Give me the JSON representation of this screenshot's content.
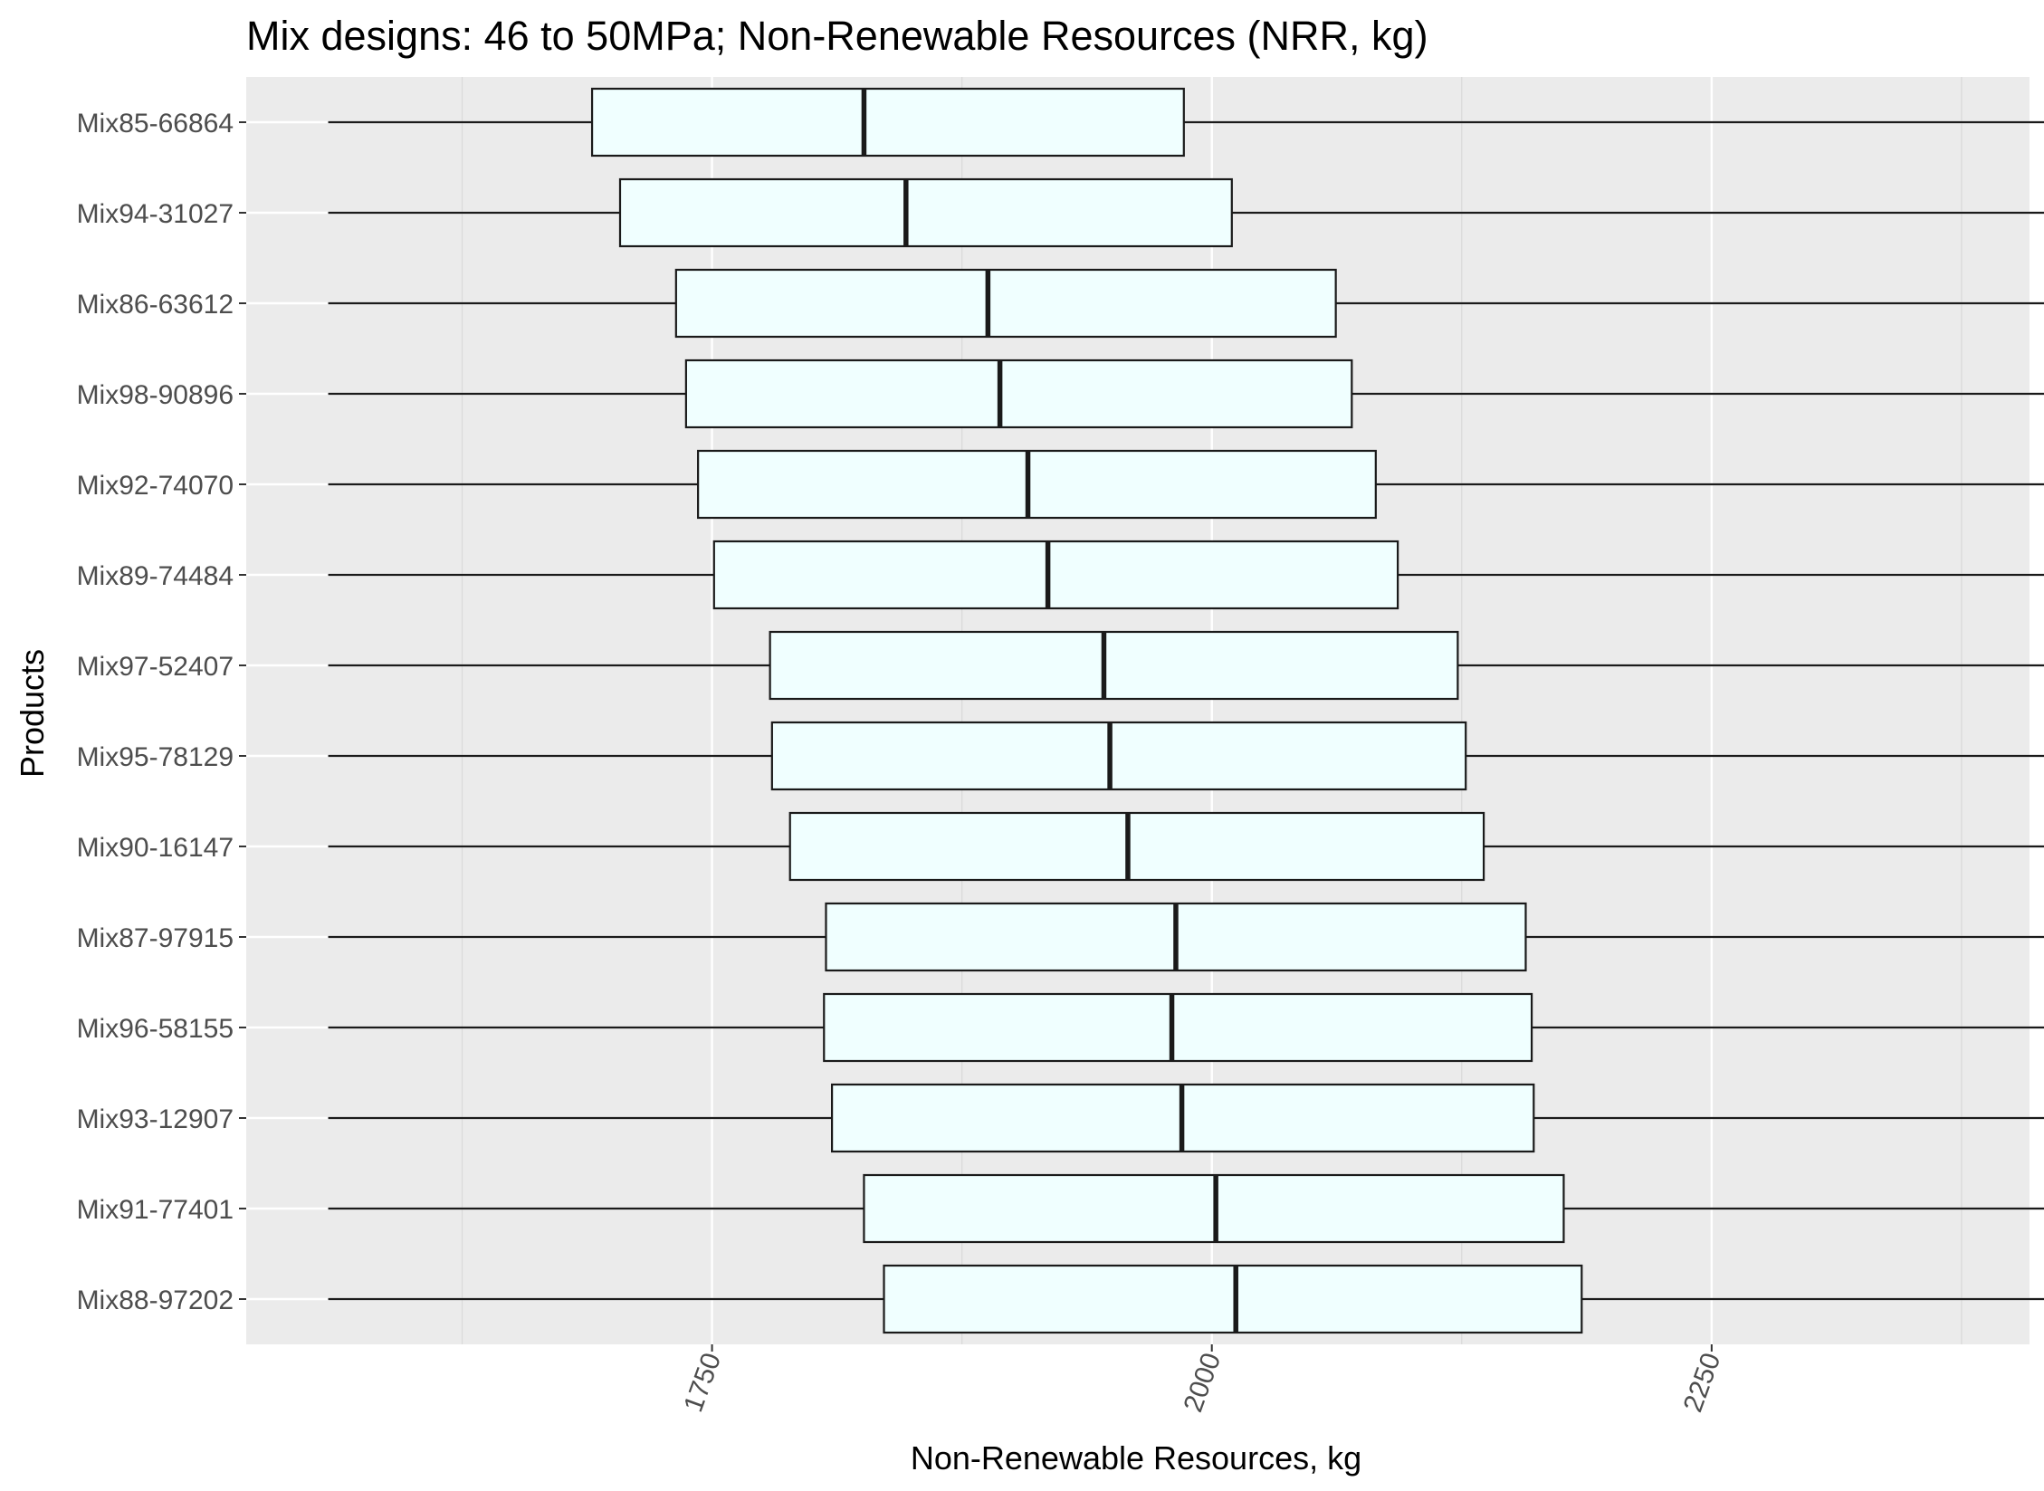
{
  "chart_data": {
    "type": "boxplot",
    "orientation": "horizontal",
    "title": "Mix designs: 46 to 50MPa; Non-Renewable Resources (NRR, kg)",
    "xlabel": "Non-Renewable Resources, kg",
    "ylabel": "Products",
    "xlim": [
      1517,
      2409
    ],
    "xticks": [
      1750,
      2000,
      2250
    ],
    "x_tick_labels": [
      "1750",
      "2000",
      "2250"
    ],
    "x_tick_label_rotation": -70,
    "grid": true,
    "legend": "none",
    "colors": {
      "panel_background": "#ebebeb",
      "grid_major": "#ffffff",
      "grid_minor": "#d9d9d9",
      "box_fill": "#f0ffff",
      "box_stroke": "#1a1a1a",
      "whisker": "#1a1a1a"
    },
    "categories": [
      "Mix85-66864",
      "Mix94-31027",
      "Mix86-63612",
      "Mix98-90896",
      "Mix92-74070",
      "Mix89-74484",
      "Mix97-52407",
      "Mix95-78129",
      "Mix90-16147",
      "Mix87-97915",
      "Mix96-58155",
      "Mix93-12907",
      "Mix91-77401",
      "Mix88-97202"
    ],
    "boxes": [
      {
        "min": 1558,
        "q1": 1690,
        "median": 1826,
        "q3": 1986,
        "max": 2417
      },
      {
        "min": 1558,
        "q1": 1704,
        "median": 1847,
        "q3": 2010,
        "max": 2417
      },
      {
        "min": 1558,
        "q1": 1732,
        "median": 1888,
        "q3": 2062,
        "max": 2417
      },
      {
        "min": 1558,
        "q1": 1737,
        "median": 1894,
        "q3": 2070,
        "max": 2417
      },
      {
        "min": 1558,
        "q1": 1743,
        "median": 1908,
        "q3": 2082,
        "max": 2417
      },
      {
        "min": 1558,
        "q1": 1751,
        "median": 1918,
        "q3": 2093,
        "max": 2417
      },
      {
        "min": 1558,
        "q1": 1779,
        "median": 1946,
        "q3": 2123,
        "max": 2417
      },
      {
        "min": 1558,
        "q1": 1780,
        "median": 1949,
        "q3": 2127,
        "max": 2417
      },
      {
        "min": 1558,
        "q1": 1789,
        "median": 1958,
        "q3": 2136,
        "max": 2417
      },
      {
        "min": 1558,
        "q1": 1807,
        "median": 1982,
        "q3": 2157,
        "max": 2417
      },
      {
        "min": 1558,
        "q1": 1806,
        "median": 1980,
        "q3": 2160,
        "max": 2417
      },
      {
        "min": 1558,
        "q1": 1810,
        "median": 1985,
        "q3": 2161,
        "max": 2417
      },
      {
        "min": 1558,
        "q1": 1826,
        "median": 2002,
        "q3": 2176,
        "max": 2417
      },
      {
        "min": 1558,
        "q1": 1836,
        "median": 2012,
        "q3": 2185,
        "max": 2417
      }
    ]
  }
}
